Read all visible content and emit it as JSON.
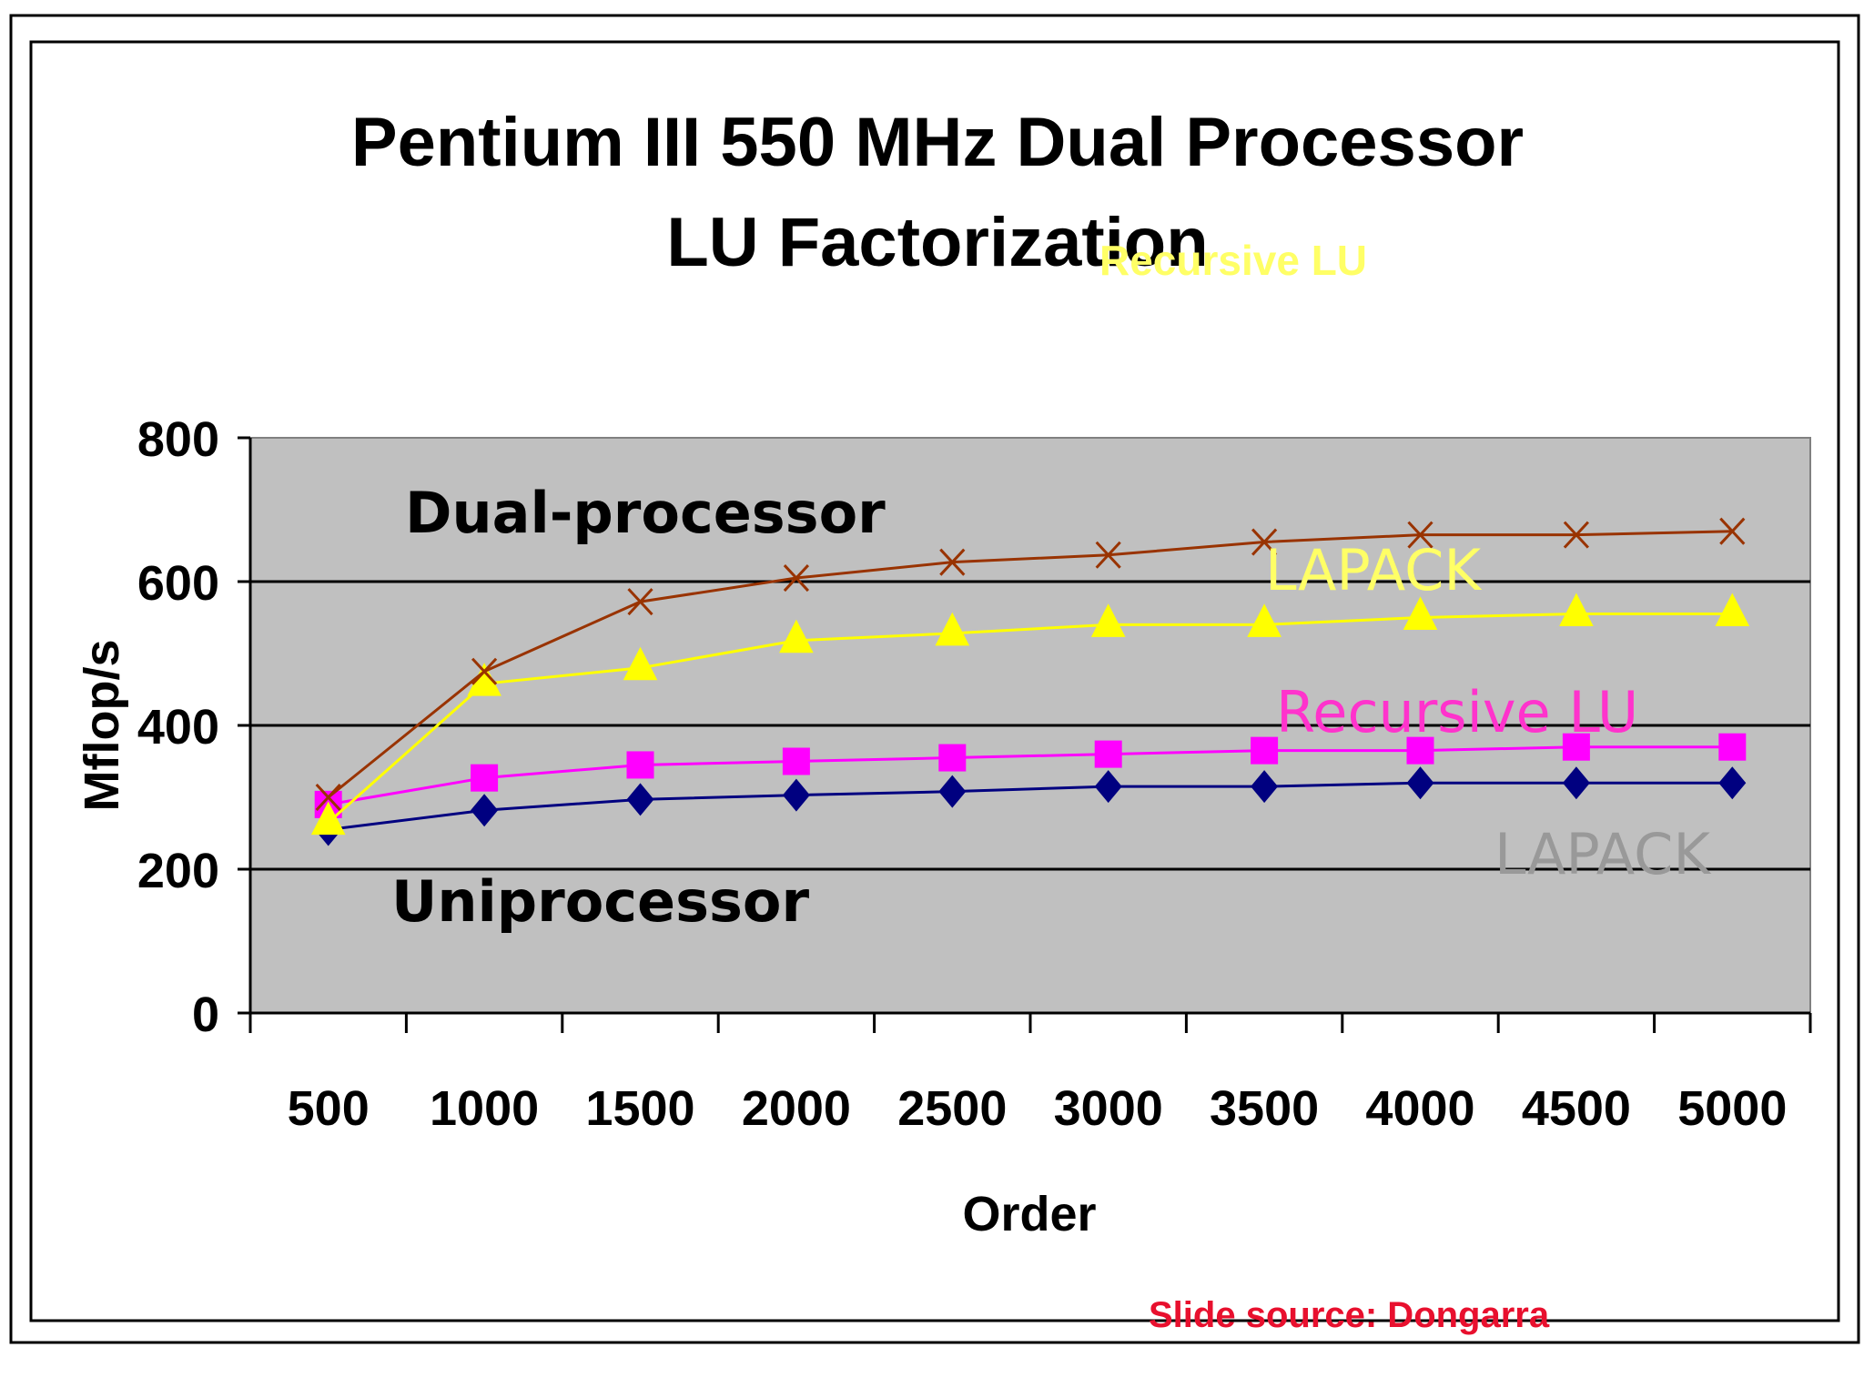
{
  "colors": {
    "plot_bg": "#c0c0c0",
    "dual_lapack": "#ffff00",
    "dual_recursive": "#993300",
    "uni_recursive": "#ff00ff",
    "uni_lapack": "#000080",
    "label_yellow": "#ffff66",
    "label_magenta": "#ff33cc",
    "label_gray": "#999999",
    "source_red": "#e8102e"
  },
  "chart_data": {
    "type": "line",
    "title": "Pentium III 550 MHz Dual Processor",
    "subtitle": "LU Factorization",
    "xlabel": "Order",
    "ylabel": "Mflop/s",
    "categories": [
      "500",
      "1000",
      "1500",
      "2000",
      "2500",
      "3000",
      "3500",
      "4000",
      "4500",
      "5000"
    ],
    "y_ticks": [
      "0",
      "200",
      "400",
      "600",
      "800"
    ],
    "ylim": [
      0,
      800
    ],
    "grid": true,
    "series": [
      {
        "name": "Recursive LU",
        "group": "Dual-processor",
        "marker": "x",
        "color": "#993300",
        "values": [
          300,
          475,
          572,
          605,
          627,
          637,
          655,
          665,
          665,
          670
        ]
      },
      {
        "name": "LAPACK",
        "group": "Dual-processor",
        "marker": "triangle",
        "color": "#ffff00",
        "values": [
          265,
          458,
          480,
          518,
          528,
          540,
          540,
          550,
          555,
          555
        ]
      },
      {
        "name": "Recursive LU",
        "group": "Uniprocessor",
        "marker": "square",
        "color": "#ff00ff",
        "values": [
          290,
          327,
          345,
          350,
          355,
          360,
          365,
          365,
          370,
          370
        ]
      },
      {
        "name": "LAPACK",
        "group": "Uniprocessor",
        "marker": "diamond",
        "color": "#000080",
        "values": [
          255,
          282,
          297,
          303,
          308,
          315,
          315,
          320,
          320,
          320
        ]
      }
    ],
    "annotations": {
      "legend_recursive_yellow": "Recursive LU",
      "dual_group": "Dual-processor",
      "uni_group": "Uniprocessor",
      "dual_lapack_label": "LAPACK",
      "uni_recursive_label": "Recursive LU",
      "uni_lapack_label": "LAPACK"
    }
  },
  "footer": {
    "source": "Slide source: Dongarra"
  }
}
